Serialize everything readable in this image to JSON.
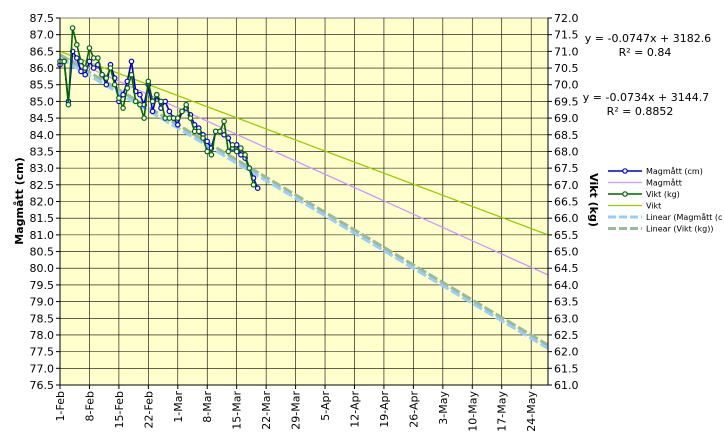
{
  "chart_data": {
    "type": "line",
    "xlabel": "",
    "ylabel_left": "Magmått (cm)",
    "ylabel_right": "Vikt (kg)",
    "ylim_left": [
      76.5,
      87.5
    ],
    "ylim_right": [
      61.0,
      72.0
    ],
    "xlim_days": [
      0,
      116
    ],
    "x_ticks": [
      "1-Feb",
      "8-Feb",
      "15-Feb",
      "22-Feb",
      "1-Mar",
      "8-Mar",
      "15-Mar",
      "22-Mar",
      "29-Mar",
      "5-Apr",
      "12-Apr",
      "19-Apr",
      "26-Apr",
      "3-May",
      "10-May",
      "17-May",
      "24-May"
    ],
    "y_ticks_left": [
      "87.5",
      "87.0",
      "86.5",
      "86.0",
      "85.5",
      "85.0",
      "84.5",
      "84.0",
      "83.5",
      "83.0",
      "82.5",
      "82.0",
      "81.5",
      "81.0",
      "80.5",
      "80.0",
      "79.5",
      "79.0",
      "78.5",
      "78.0",
      "77.5",
      "77.0",
      "76.5"
    ],
    "y_ticks_right": [
      "72.0",
      "71.5",
      "71.0",
      "70.5",
      "70.0",
      "69.5",
      "69.0",
      "68.5",
      "68.0",
      "67.5",
      "67.0",
      "66.5",
      "66.0",
      "65.5",
      "65.0",
      "64.5",
      "64.0",
      "63.5",
      "63.0",
      "62.5",
      "62.0",
      "61.5",
      "61.0"
    ],
    "grid": true,
    "legend_position": "right",
    "equations": [
      {
        "equation": "y = -0.0747x + 3182.6",
        "r2": "R² = 0.84"
      },
      {
        "equation": "y = -0.0734x + 3144.7",
        "r2": "R² = 0.8852"
      }
    ],
    "series": [
      {
        "name": "Magmått (cm)",
        "axis": "left",
        "color": "#0000cc",
        "style": "line-markers",
        "x": [
          0,
          1,
          2,
          3,
          4,
          5,
          6,
          7,
          8,
          9,
          10,
          11,
          12,
          13,
          14,
          15,
          16,
          17,
          18,
          19,
          20,
          21,
          22,
          23,
          24,
          25,
          26,
          27,
          28,
          29,
          30,
          31,
          32,
          33,
          34,
          35,
          36,
          37,
          38,
          39,
          40,
          41,
          42,
          43,
          44,
          45,
          46,
          47
        ],
        "y": [
          86.1,
          86.2,
          85.0,
          86.5,
          86.3,
          85.9,
          85.8,
          86.2,
          86.0,
          86.1,
          85.8,
          85.5,
          86.1,
          85.7,
          85.0,
          85.2,
          85.6,
          86.2,
          85.3,
          85.2,
          84.9,
          85.5,
          84.7,
          85.2,
          84.8,
          85.0,
          84.7,
          84.5,
          84.3,
          84.7,
          84.8,
          84.6,
          84.3,
          84.2,
          84.0,
          83.8,
          83.6,
          84.1,
          84.1,
          84.0,
          83.9,
          83.6,
          83.7,
          83.4,
          83.3,
          83.0,
          82.7,
          82.4
        ]
      },
      {
        "name": "Magmått",
        "axis": "left",
        "color": "#cc99ff",
        "style": "trendline",
        "x": [
          0,
          116
        ],
        "y": [
          86.4,
          79.8
        ]
      },
      {
        "name": "Vikt (kg)",
        "axis": "right",
        "color": "#006600",
        "style": "line-markers",
        "x": [
          0,
          1,
          2,
          3,
          4,
          5,
          6,
          7,
          8,
          9,
          10,
          11,
          12,
          13,
          14,
          15,
          16,
          17,
          18,
          19,
          20,
          21,
          22,
          23,
          24,
          25,
          26,
          27,
          28,
          29,
          30,
          31,
          32,
          33,
          34,
          35,
          36,
          37,
          38,
          39,
          40,
          41,
          42,
          43,
          44,
          45,
          46
        ],
        "y": [
          70.7,
          70.7,
          69.4,
          71.7,
          71.2,
          70.7,
          70.5,
          71.1,
          70.8,
          70.8,
          70.3,
          70.2,
          70.5,
          70.0,
          69.6,
          69.3,
          69.9,
          70.3,
          69.5,
          69.4,
          69.0,
          70.1,
          69.5,
          69.7,
          69.5,
          69.0,
          69.0,
          69.0,
          69.0,
          69.2,
          69.4,
          69.0,
          68.6,
          68.6,
          68.4,
          68.0,
          67.9,
          68.6,
          68.6,
          68.9,
          68.0,
          68.2,
          68.0,
          68.1,
          67.9,
          67.5,
          67.0
        ]
      },
      {
        "name": "Vikt",
        "axis": "right",
        "color": "#99cc00",
        "style": "trendline",
        "x": [
          0,
          116
        ],
        "y": [
          71.0,
          65.5
        ]
      },
      {
        "name": "Linear (Magmått (c",
        "axis": "left",
        "color": "#99ccff",
        "style": "dashed",
        "x": [
          0,
          116
        ],
        "y": [
          86.3,
          77.6
        ]
      },
      {
        "name": "Linear (Vikt (kg))",
        "axis": "right",
        "color": "#99bb99",
        "style": "dashed",
        "x": [
          0,
          116
        ],
        "y": [
          70.9,
          62.2
        ]
      }
    ]
  }
}
